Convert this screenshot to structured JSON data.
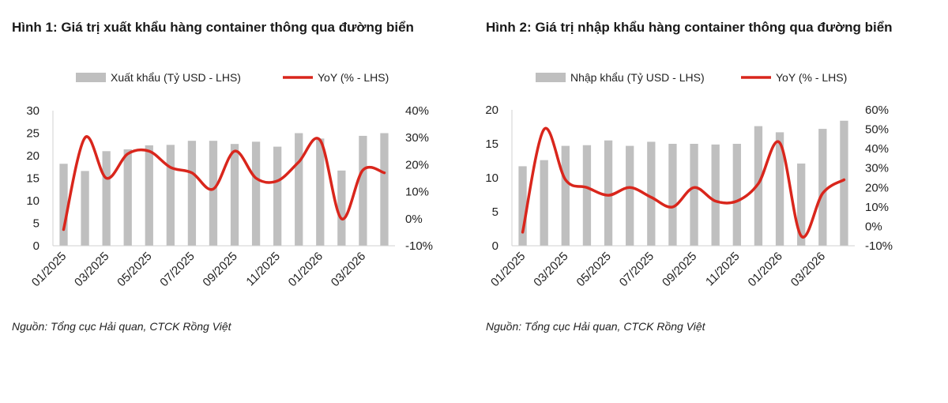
{
  "chart_data": [
    {
      "type": "bar+line",
      "title": "Hình 1: Giá trị xuất khẩu hàng container thông qua đường biển",
      "source": "Nguồn: Tổng cục Hải quan, CTCK Rồng Việt",
      "bar_color": "#bfbfbf",
      "line_color": "#d9261c",
      "legend_position": "top",
      "grid": false,
      "x": [
        "01/2025",
        "02/2025",
        "03/2025",
        "04/2025",
        "05/2025",
        "06/2025",
        "07/2025",
        "08/2025",
        "09/2025",
        "10/2025",
        "11/2025",
        "12/2025",
        "01/2026",
        "02/2026",
        "03/2026",
        "04/2026"
      ],
      "x_tick_labels": [
        "01/2025",
        "03/2025",
        "05/2025",
        "07/2025",
        "09/2025",
        "11/2025",
        "01/2026",
        "03/2026"
      ],
      "series": [
        {
          "name": "Xuất khẩu (Tỷ USD - LHS)",
          "type": "bar",
          "axis": "left",
          "values": [
            18.2,
            16.6,
            21.0,
            21.4,
            22.3,
            22.4,
            23.3,
            23.3,
            22.6,
            23.1,
            22.0,
            25.0,
            23.8,
            16.7,
            24.4,
            25.0
          ]
        },
        {
          "name": "YoY (% - LHS)",
          "type": "line",
          "axis": "right",
          "values": [
            -4,
            30,
            15,
            24,
            25,
            19,
            17,
            11,
            25,
            15,
            14,
            21,
            29,
            0,
            18,
            17
          ]
        }
      ],
      "left_axis": {
        "min": 0,
        "max": 30,
        "ticks": [
          0,
          5,
          10,
          15,
          20,
          25,
          30
        ]
      },
      "right_axis": {
        "min": -10,
        "max": 40,
        "ticks": [
          "-10%",
          "0%",
          "10%",
          "20%",
          "30%",
          "40%"
        ]
      }
    },
    {
      "type": "bar+line",
      "title": "Hình 2: Giá trị nhập khẩu hàng container thông qua đường biển",
      "source": "Nguồn: Tổng cục Hải quan, CTCK Rồng Việt",
      "bar_color": "#bfbfbf",
      "line_color": "#d9261c",
      "legend_position": "top",
      "grid": false,
      "x": [
        "01/2025",
        "02/2025",
        "03/2025",
        "04/2025",
        "05/2025",
        "06/2025",
        "07/2025",
        "08/2025",
        "09/2025",
        "10/2025",
        "11/2025",
        "12/2025",
        "01/2026",
        "02/2026",
        "03/2026",
        "04/2026"
      ],
      "x_tick_labels": [
        "01/2025",
        "03/2025",
        "05/2025",
        "07/2025",
        "09/2025",
        "11/2025",
        "01/2026",
        "03/2026"
      ],
      "series": [
        {
          "name": "Nhập khẩu (Tỷ USD - LHS)",
          "type": "bar",
          "axis": "left",
          "values": [
            11.7,
            12.6,
            14.7,
            14.8,
            15.5,
            14.7,
            15.3,
            15.0,
            15.0,
            14.9,
            15.0,
            17.6,
            16.7,
            12.1,
            17.2,
            18.4
          ]
        },
        {
          "name": "YoY (% - LHS)",
          "type": "line",
          "axis": "right",
          "values": [
            -3,
            50,
            24,
            20,
            16,
            20,
            15,
            10,
            20,
            13,
            13,
            22,
            43,
            -5,
            17,
            24
          ]
        }
      ],
      "left_axis": {
        "min": 0,
        "max": 20,
        "ticks": [
          0,
          5,
          10,
          15,
          20
        ]
      },
      "right_axis": {
        "min": -10,
        "max": 60,
        "ticks": [
          "-10%",
          "0%",
          "10%",
          "20%",
          "30%",
          "40%",
          "50%",
          "60%"
        ]
      }
    }
  ]
}
